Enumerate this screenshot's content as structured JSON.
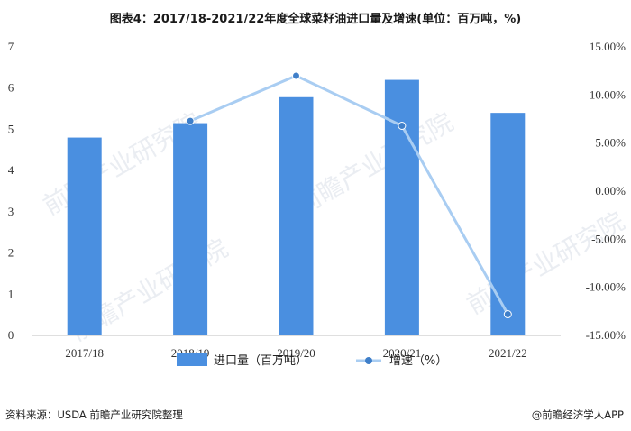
{
  "title": "图表4：2017/18-2021/22年度全球菜籽油进口量及增速(单位：百万吨，%)",
  "source": "资料来源：USDA 前瞻产业研究院整理",
  "credit": "@前瞻经济学人APP",
  "watermark": "前瞻产业研究院",
  "colors": {
    "bar": "#4a8fe0",
    "line": "#a9cdf2",
    "marker": "#3f7fc9"
  },
  "chart_data": {
    "type": "bar+line",
    "categories": [
      "2017/18",
      "2018/19",
      "2019/20",
      "2020/21",
      "2021/22"
    ],
    "series": [
      {
        "name": "进口量（百万吨）",
        "type": "bar",
        "axis": "left",
        "values": [
          4.8,
          5.15,
          5.78,
          6.2,
          5.4
        ]
      },
      {
        "name": "增速（%）",
        "type": "line",
        "axis": "right",
        "values": [
          null,
          7.3,
          12.0,
          6.8,
          -12.8
        ]
      }
    ],
    "y_left": {
      "min": 0,
      "max": 7,
      "ticks": [
        "0",
        "1",
        "2",
        "3",
        "4",
        "5",
        "6",
        "7"
      ]
    },
    "y_right": {
      "min": -15,
      "max": 15,
      "ticks": [
        "-15.00%",
        "-10.00%",
        "-5.00%",
        "0.00%",
        "5.00%",
        "10.00%",
        "15.00%"
      ]
    },
    "legend_position": "bottom",
    "grid": false
  }
}
